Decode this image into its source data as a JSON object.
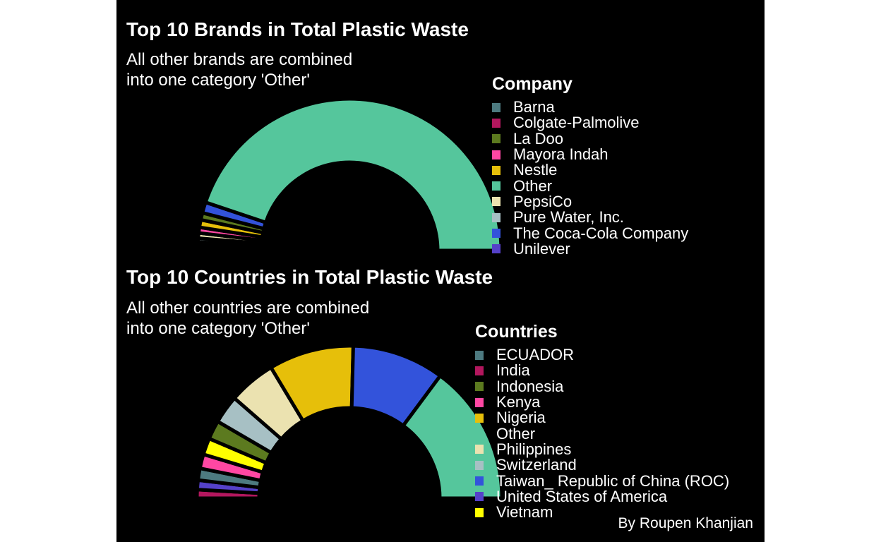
{
  "caption": "By Roupen Khanjian",
  "chart_data": [
    {
      "type": "pie",
      "variant": "half-donut",
      "title": "Top 10 Brands in Total Plastic Waste",
      "subtitle_lines": [
        "All other brands are combined",
        "into one category 'Other'"
      ],
      "legend_title": "Company",
      "categories": [
        "Barna",
        "Colgate-Palmolive",
        "La Doo",
        "Mayora Indah",
        "Nestle",
        "Other",
        "PepsiCo",
        "Pure Water, Inc.",
        "The Coca-Cola Company",
        "Unilever"
      ],
      "colors": [
        "#4d7a80",
        "#b3175e",
        "#5c7a1f",
        "#ff47a3",
        "#e6bf0a",
        "#55c69c",
        "#ebe2b0",
        "#a7c0c4",
        "#3353db",
        "#5541c9"
      ],
      "arc_order": [
        "Colgate-Palmolive",
        "Barna",
        "Unilever",
        "Pure Water, Inc.",
        "PepsiCo",
        "Mayora Indah",
        "Nestle",
        "La Doo",
        "The Coca-Cola Company",
        "Other"
      ],
      "arc_values": [
        0.5,
        0.6,
        0.7,
        0.8,
        1.1,
        1.2,
        1.6,
        1.5,
        2.3,
        89.7
      ],
      "separator_color": "#000000",
      "legend_placement": "right"
    },
    {
      "type": "pie",
      "variant": "half-donut",
      "title": "Top 10 Countries in Total Plastic Waste",
      "subtitle_lines": [
        "All other countries are combined",
        "into one category 'Other'"
      ],
      "legend_title": "Countries",
      "categories": [
        "ECUADOR",
        "India",
        "Indonesia",
        "Kenya",
        "Nigeria",
        "Other",
        "Philippines",
        "Switzerland",
        "Taiwan_ Republic of China (ROC)",
        "United States of America",
        "Vietnam"
      ],
      "colors": [
        "#4d7a80",
        "#b3175e",
        "#5c7a1f",
        "#ff47a3",
        "#e6bf0a",
        "#55c69c",
        "#ebe2b0",
        "#a7c0c4",
        "#3353db",
        "#5541c9",
        "#ffff00"
      ],
      "arc_order": [
        "India",
        "United States of America",
        "ECUADOR",
        "Kenya",
        "Vietnam",
        "Indonesia",
        "Switzerland",
        "Philippines",
        "Nigeria",
        "Taiwan_ Republic of China (ROC)",
        "Other"
      ],
      "arc_values": [
        1.8,
        2.0,
        2.5,
        3.0,
        3.5,
        4.0,
        6.0,
        10.0,
        18.0,
        19.5,
        29.7
      ],
      "separator_color": "#000000",
      "legend_placement": "right"
    }
  ]
}
